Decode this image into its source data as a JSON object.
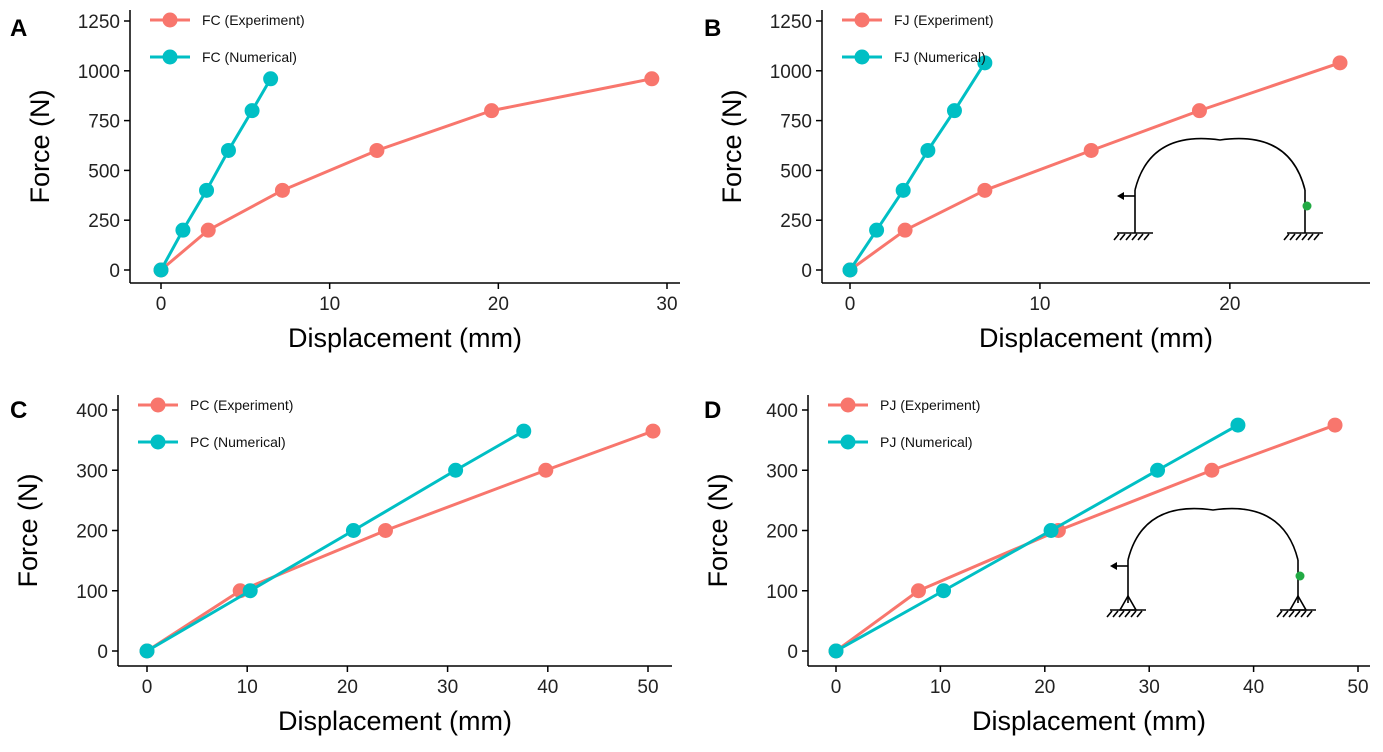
{
  "colors": {
    "experiment": "#F8766D",
    "numerical": "#00BFC4",
    "marker_dot": "#22AA44"
  },
  "chart_data": [
    {
      "panel": "A",
      "type": "line",
      "xlabel": "Displacement (mm)",
      "ylabel": "Force (N)",
      "xlim": [
        0,
        30
      ],
      "ylim": [
        0,
        1250
      ],
      "xticks": [
        0,
        10,
        20,
        30
      ],
      "yticks": [
        0,
        250,
        500,
        750,
        1000,
        1250
      ],
      "legend": "top-left",
      "grid": false,
      "series": [
        {
          "name": "FC (Experiment)",
          "color": "#F8766D",
          "x": [
            0,
            2.8,
            7.2,
            12.8,
            19.6,
            29.1
          ],
          "y": [
            0,
            200,
            400,
            600,
            800,
            960
          ]
        },
        {
          "name": "FC (Numerical)",
          "color": "#00BFC4",
          "x": [
            0,
            1.3,
            2.7,
            4.0,
            5.4,
            6.5
          ],
          "y": [
            0,
            200,
            400,
            600,
            800,
            960
          ]
        }
      ]
    },
    {
      "panel": "B",
      "type": "line",
      "xlabel": "Displacement (mm)",
      "ylabel": "Force (N)",
      "xlim": [
        0,
        25.8
      ],
      "ylim": [
        0,
        1250
      ],
      "xticks": [
        0,
        10,
        20
      ],
      "yticks": [
        0,
        250,
        500,
        750,
        1000,
        1250
      ],
      "legend": "top-left",
      "grid": false,
      "inset": "fixed",
      "series": [
        {
          "name": "FJ (Experiment)",
          "color": "#F8766D",
          "x": [
            0,
            1.4,
            2.8,
            4.1,
            5.5,
            7.1
          ],
          "y": [
            0,
            200,
            400,
            600,
            800,
            1040
          ]
        },
        {
          "name": "FJ (Numerical)",
          "color": "#00BFC4",
          "x": [
            0,
            1.4,
            2.8,
            4.1,
            5.5,
            7.1
          ],
          "y": [
            0,
            200,
            400,
            600,
            800,
            1040
          ]
        }
      ],
      "experiment_points": {
        "x": [
          0,
          2.9,
          7.1,
          12.7,
          18.4,
          25.8
        ],
        "y": [
          0,
          200,
          400,
          600,
          800,
          1040
        ]
      }
    },
    {
      "panel": "C",
      "type": "line",
      "xlabel": "Displacement (mm)",
      "ylabel": "Force (N)",
      "xlim": [
        0,
        50
      ],
      "ylim": [
        0,
        400
      ],
      "xticks": [
        0,
        10,
        20,
        30,
        40,
        50
      ],
      "yticks": [
        0,
        100,
        200,
        300,
        400
      ],
      "legend": "top-left",
      "grid": false,
      "series": [
        {
          "name": "PC (Experiment)",
          "color": "#F8766D",
          "x": [
            0,
            9.3,
            23.8,
            39.8,
            50.5
          ],
          "y": [
            0,
            100,
            200,
            300,
            365
          ]
        },
        {
          "name": "PC (Numerical)",
          "color": "#00BFC4",
          "x": [
            0,
            10.3,
            20.6,
            30.8,
            37.6
          ],
          "y": [
            0,
            100,
            200,
            300,
            365
          ]
        }
      ]
    },
    {
      "panel": "D",
      "type": "line",
      "xlabel": "Displacement (mm)",
      "ylabel": "Force (N)",
      "xlim": [
        0,
        50
      ],
      "ylim": [
        0,
        400
      ],
      "xticks": [
        0,
        10,
        20,
        30,
        40,
        50
      ],
      "yticks": [
        0,
        100,
        200,
        300,
        400
      ],
      "legend": "top-left",
      "grid": false,
      "inset": "pinned",
      "series": [
        {
          "name": "PJ (Experiment)",
          "color": "#F8766D",
          "x": [
            0,
            7.9,
            21.3,
            36.0,
            47.8
          ],
          "y": [
            0,
            100,
            200,
            300,
            375
          ]
        },
        {
          "name": "PJ (Numerical)",
          "color": "#00BFC4",
          "x": [
            0,
            10.3,
            20.6,
            30.8,
            38.5
          ],
          "y": [
            0,
            100,
            200,
            300,
            375
          ]
        }
      ]
    }
  ]
}
